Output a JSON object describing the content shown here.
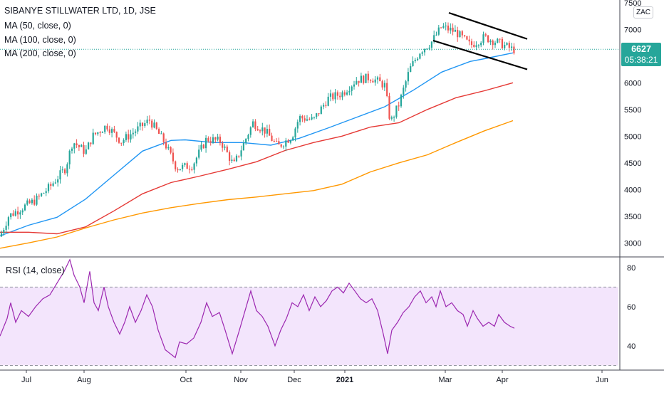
{
  "legend": {
    "title": "SIBANYE STILLWATER LTD, 1D, JSE",
    "ma50": "MA (50, close, 0)",
    "ma100": "MA (100, close, 0)",
    "ma200": "MA (200, close, 0)",
    "rsi": "RSI (14, close)"
  },
  "price_tag": {
    "value": "6627",
    "countdown": "05:38:21"
  },
  "currency_badge": "ZAC",
  "colors": {
    "up": "#26a69a",
    "down": "#ef5350",
    "ma50": "#2196f3",
    "ma100": "#e53935",
    "ma200": "#ff9800",
    "rsi_line": "#9c27b0",
    "rsi_band": "#f3e5fc",
    "channel": "#000000",
    "last_price_line": "#26a69a"
  },
  "chart_data": [
    {
      "type": "candlestick",
      "ylim": [
        2750,
        7550
      ],
      "yticks": [
        3000,
        3500,
        4000,
        4500,
        5000,
        5500,
        6000,
        6500,
        7000,
        7500
      ],
      "xticks": [
        "Jul",
        "Aug",
        "Oct",
        "Nov",
        "Dec",
        "2021",
        "Mar",
        "Apr",
        "Jun"
      ],
      "grid": false,
      "last_price": 6627,
      "channel_upper": [
        [
          0.0,
          7310
        ],
        [
          1.0,
          6820
        ]
      ],
      "channel_lower": [
        [
          0.0,
          6790
        ],
        [
          1.0,
          6250
        ]
      ],
      "series": [
        {
          "name": "MA (50, close, 0)",
          "values": [
            [
              0,
              3130
            ],
            [
              40,
              3330
            ],
            [
              80,
              3480
            ],
            [
              120,
              3820
            ],
            [
              160,
              4270
            ],
            [
              200,
              4720
            ],
            [
              240,
              4920
            ],
            [
              260,
              4930
            ],
            [
              300,
              4880
            ],
            [
              340,
              4880
            ],
            [
              380,
              4830
            ],
            [
              420,
              4960
            ],
            [
              460,
              5150
            ],
            [
              500,
              5350
            ],
            [
              540,
              5550
            ],
            [
              580,
              5860
            ],
            [
              620,
              6200
            ],
            [
              660,
              6400
            ],
            [
              680,
              6450
            ],
            [
              720,
              6560
            ]
          ]
        },
        {
          "name": "MA (100, close, 0)",
          "values": [
            [
              0,
              3200
            ],
            [
              40,
              3200
            ],
            [
              80,
              3170
            ],
            [
              120,
              3300
            ],
            [
              160,
              3600
            ],
            [
              200,
              3920
            ],
            [
              240,
              4130
            ],
            [
              280,
              4250
            ],
            [
              320,
              4380
            ],
            [
              360,
              4520
            ],
            [
              400,
              4730
            ],
            [
              440,
              4880
            ],
            [
              480,
              5000
            ],
            [
              520,
              5170
            ],
            [
              560,
              5250
            ],
            [
              600,
              5500
            ],
            [
              640,
              5720
            ],
            [
              680,
              5850
            ],
            [
              720,
              6000
            ]
          ]
        },
        {
          "name": "MA (200, close, 0)",
          "values": [
            [
              0,
              2900
            ],
            [
              40,
              3000
            ],
            [
              80,
              3110
            ],
            [
              120,
              3280
            ],
            [
              160,
              3430
            ],
            [
              200,
              3560
            ],
            [
              240,
              3660
            ],
            [
              280,
              3740
            ],
            [
              320,
              3810
            ],
            [
              360,
              3860
            ],
            [
              400,
              3920
            ],
            [
              440,
              3980
            ],
            [
              480,
              4100
            ],
            [
              520,
              4330
            ],
            [
              560,
              4500
            ],
            [
              600,
              4650
            ],
            [
              640,
              4880
            ],
            [
              680,
              5100
            ],
            [
              720,
              5290
            ]
          ]
        }
      ]
    },
    {
      "type": "line",
      "title": "RSI (14, close)",
      "ylim": [
        28,
        85
      ],
      "yticks": [
        40,
        60,
        80
      ],
      "band": [
        30,
        70
      ],
      "series": [
        {
          "name": "RSI (14, close)",
          "values": [
            [
              0,
              45
            ],
            [
              10,
              54
            ],
            [
              15,
              62
            ],
            [
              22,
              52
            ],
            [
              30,
              58
            ],
            [
              40,
              55
            ],
            [
              50,
              60
            ],
            [
              60,
              64
            ],
            [
              70,
              66
            ],
            [
              80,
              72
            ],
            [
              90,
              78
            ],
            [
              98,
              84
            ],
            [
              104,
              76
            ],
            [
              112,
              70
            ],
            [
              118,
              62
            ],
            [
              126,
              78
            ],
            [
              132,
              62
            ],
            [
              138,
              58
            ],
            [
              146,
              70
            ],
            [
              152,
              60
            ],
            [
              160,
              52
            ],
            [
              168,
              46
            ],
            [
              175,
              52
            ],
            [
              182,
              60
            ],
            [
              190,
              52
            ],
            [
              198,
              58
            ],
            [
              206,
              66
            ],
            [
              214,
              60
            ],
            [
              222,
              48
            ],
            [
              232,
              38
            ],
            [
              246,
              34
            ],
            [
              252,
              42
            ],
            [
              262,
              41
            ],
            [
              272,
              44
            ],
            [
              282,
              52
            ],
            [
              290,
              62
            ],
            [
              298,
              55
            ],
            [
              308,
              57
            ],
            [
              316,
              48
            ],
            [
              326,
              36
            ],
            [
              336,
              48
            ],
            [
              344,
              58
            ],
            [
              352,
              68
            ],
            [
              360,
              58
            ],
            [
              368,
              55
            ],
            [
              376,
              50
            ],
            [
              386,
              40
            ],
            [
              394,
              48
            ],
            [
              402,
              54
            ],
            [
              410,
              62
            ],
            [
              418,
              60
            ],
            [
              426,
              66
            ],
            [
              434,
              58
            ],
            [
              442,
              65
            ],
            [
              450,
              60
            ],
            [
              458,
              63
            ],
            [
              466,
              68
            ],
            [
              474,
              70
            ],
            [
              482,
              67
            ],
            [
              490,
              72
            ],
            [
              498,
              68
            ],
            [
              506,
              64
            ],
            [
              514,
              62
            ],
            [
              522,
              64
            ],
            [
              530,
              58
            ],
            [
              538,
              46
            ],
            [
              544,
              36
            ],
            [
              550,
              48
            ],
            [
              558,
              52
            ],
            [
              566,
              57
            ],
            [
              574,
              60
            ],
            [
              582,
              65
            ],
            [
              590,
              68
            ],
            [
              598,
              62
            ],
            [
              606,
              65
            ],
            [
              612,
              60
            ],
            [
              618,
              68
            ],
            [
              626,
              60
            ],
            [
              634,
              62
            ],
            [
              642,
              58
            ],
            [
              650,
              56
            ],
            [
              656,
              50
            ],
            [
              664,
              58
            ],
            [
              670,
              54
            ],
            [
              678,
              50
            ],
            [
              686,
              52
            ],
            [
              694,
              50
            ],
            [
              700,
              56
            ],
            [
              708,
              52
            ],
            [
              716,
              50
            ],
            [
              722,
              49
            ]
          ]
        }
      ]
    }
  ]
}
